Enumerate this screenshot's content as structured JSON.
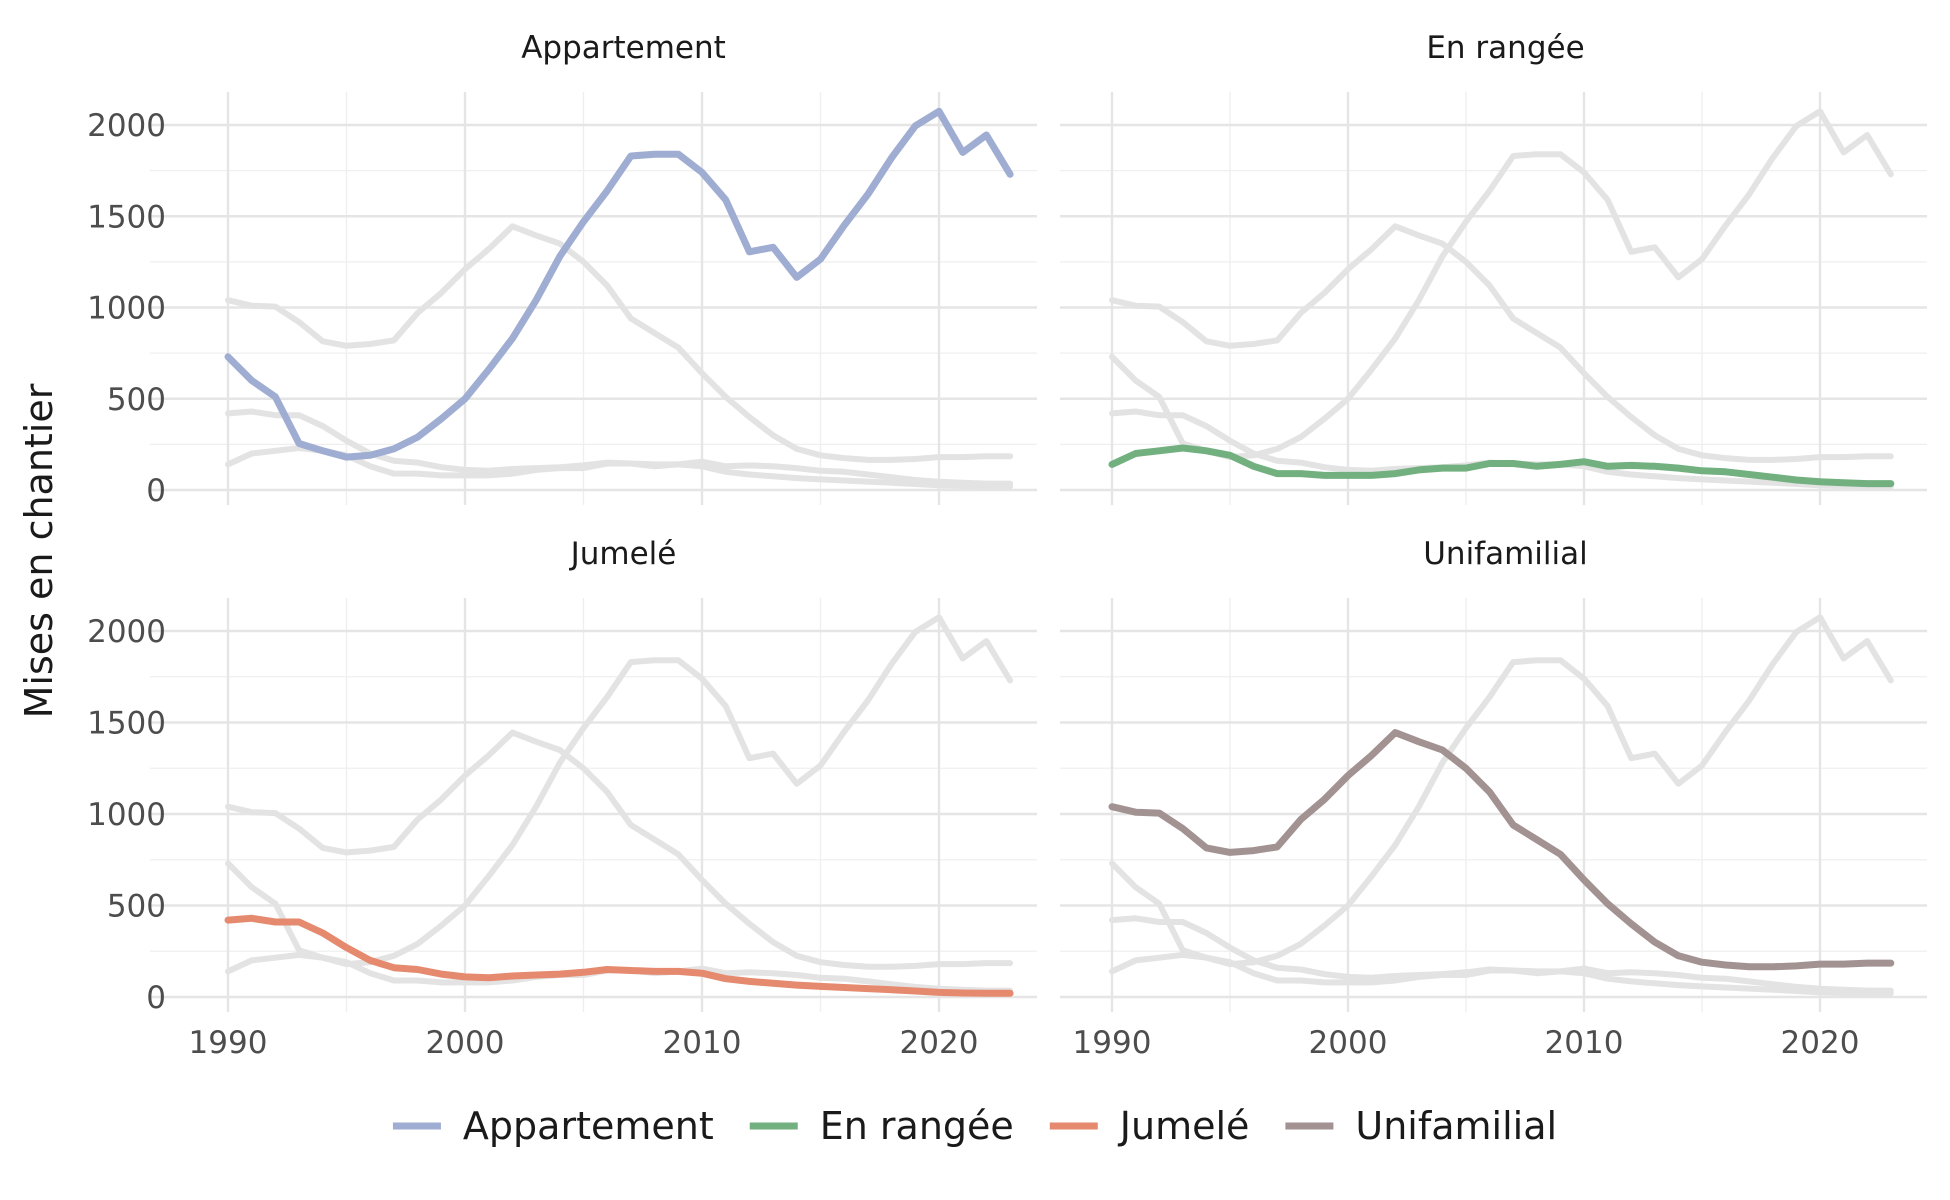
{
  "chart_data": {
    "type": "line",
    "facet_by": "series",
    "ylabel": "Mises en chantier",
    "xlabel": "",
    "xlim": [
      1990,
      2023
    ],
    "ylim": [
      0,
      2100
    ],
    "x_ticks": [
      1990,
      2000,
      2010,
      2020
    ],
    "y_ticks": [
      0,
      500,
      1000,
      1500,
      2000
    ],
    "grid": true,
    "legend_position": "bottom",
    "x": [
      1990,
      1991,
      1992,
      1993,
      1994,
      1995,
      1996,
      1997,
      1998,
      1999,
      2000,
      2001,
      2002,
      2003,
      2004,
      2005,
      2006,
      2007,
      2008,
      2009,
      2010,
      2011,
      2012,
      2013,
      2014,
      2015,
      2016,
      2017,
      2018,
      2019,
      2020,
      2021,
      2022,
      2023
    ],
    "series": [
      {
        "name": "Appartement",
        "color": "#9fadd2",
        "values": [
          730,
          600,
          510,
          255,
          215,
          180,
          190,
          225,
          290,
          390,
          500,
          660,
          830,
          1040,
          1280,
          1470,
          1640,
          1830,
          1840,
          1840,
          1740,
          1590,
          1305,
          1330,
          1165,
          1265,
          1450,
          1620,
          1820,
          1995,
          2075,
          1850,
          1945,
          1730
        ]
      },
      {
        "name": "En rangée",
        "color": "#73b080",
        "values": [
          140,
          200,
          215,
          230,
          215,
          190,
          130,
          90,
          90,
          80,
          80,
          80,
          90,
          110,
          120,
          120,
          145,
          145,
          130,
          140,
          155,
          130,
          135,
          130,
          120,
          105,
          100,
          85,
          70,
          55,
          45,
          40,
          35,
          35
        ]
      },
      {
        "name": "Jumelé",
        "color": "#e58a6e",
        "values": [
          420,
          430,
          410,
          410,
          350,
          270,
          200,
          160,
          150,
          125,
          110,
          105,
          115,
          120,
          125,
          135,
          150,
          145,
          140,
          140,
          130,
          100,
          85,
          75,
          65,
          58,
          52,
          46,
          40,
          33,
          25,
          22,
          20,
          20
        ]
      },
      {
        "name": "Unifamilial",
        "color": "#a39292",
        "values": [
          1040,
          1010,
          1005,
          920,
          815,
          790,
          800,
          820,
          970,
          1080,
          1210,
          1320,
          1445,
          1395,
          1350,
          1250,
          1120,
          940,
          860,
          780,
          640,
          510,
          400,
          300,
          225,
          190,
          175,
          165,
          165,
          170,
          180,
          180,
          185,
          185
        ]
      }
    ]
  }
}
